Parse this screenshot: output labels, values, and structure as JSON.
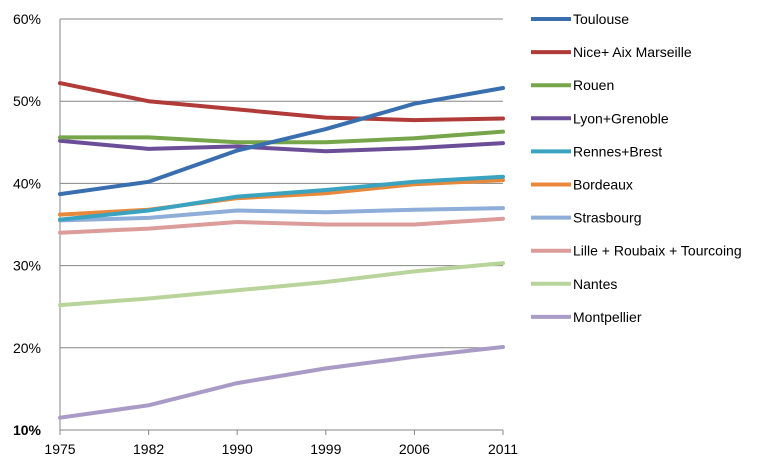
{
  "chart_data": {
    "type": "line",
    "title": "",
    "xlabel": "",
    "ylabel": "",
    "x": [
      "1975",
      "1982",
      "1990",
      "1999",
      "2006",
      "2011"
    ],
    "ylim": [
      10,
      60
    ],
    "yticks": [
      "10%",
      "20%",
      "30%",
      "40%",
      "50%",
      "60%"
    ],
    "ytick_values": [
      10,
      20,
      30,
      40,
      50,
      60
    ],
    "grid": true,
    "legend_position": "right",
    "series": [
      {
        "name": "Toulouse",
        "color": "#3a6faf",
        "values": [
          38.7,
          40.2,
          44.0,
          46.6,
          49.7,
          51.6
        ]
      },
      {
        "name": "Nice+ Aix Marseille",
        "color": "#b03b38",
        "values": [
          52.2,
          50.0,
          49.0,
          48.0,
          47.7,
          47.9
        ]
      },
      {
        "name": "Rouen",
        "color": "#76a54a",
        "values": [
          45.6,
          45.6,
          45.0,
          45.0,
          45.5,
          46.3
        ]
      },
      {
        "name": "Lyon+Grenoble",
        "color": "#6c4e98",
        "values": [
          45.2,
          44.2,
          44.5,
          43.9,
          44.3,
          44.9
        ]
      },
      {
        "name": "Rennes+Brest",
        "color": "#3aa3c0",
        "values": [
          35.6,
          36.7,
          38.4,
          39.2,
          40.2,
          40.8
        ]
      },
      {
        "name": "Bordeaux",
        "color": "#e8883a",
        "values": [
          36.2,
          36.8,
          38.2,
          38.8,
          39.9,
          40.4
        ]
      },
      {
        "name": "Strasbourg",
        "color": "#8eadd8",
        "values": [
          35.5,
          35.8,
          36.7,
          36.5,
          36.8,
          37.0
        ]
      },
      {
        "name": "Lille + Roubaix  + Tourcoing",
        "color": "#dc9c9a",
        "values": [
          34.0,
          34.5,
          35.3,
          35.0,
          35.0,
          35.7
        ]
      },
      {
        "name": "Nantes",
        "color": "#b9d49a",
        "values": [
          25.2,
          26.0,
          27.0,
          28.0,
          29.3,
          30.3
        ]
      },
      {
        "name": "Montpellier",
        "color": "#a99bc6",
        "values": [
          11.5,
          13.0,
          15.7,
          17.5,
          18.9,
          20.1
        ]
      }
    ]
  }
}
